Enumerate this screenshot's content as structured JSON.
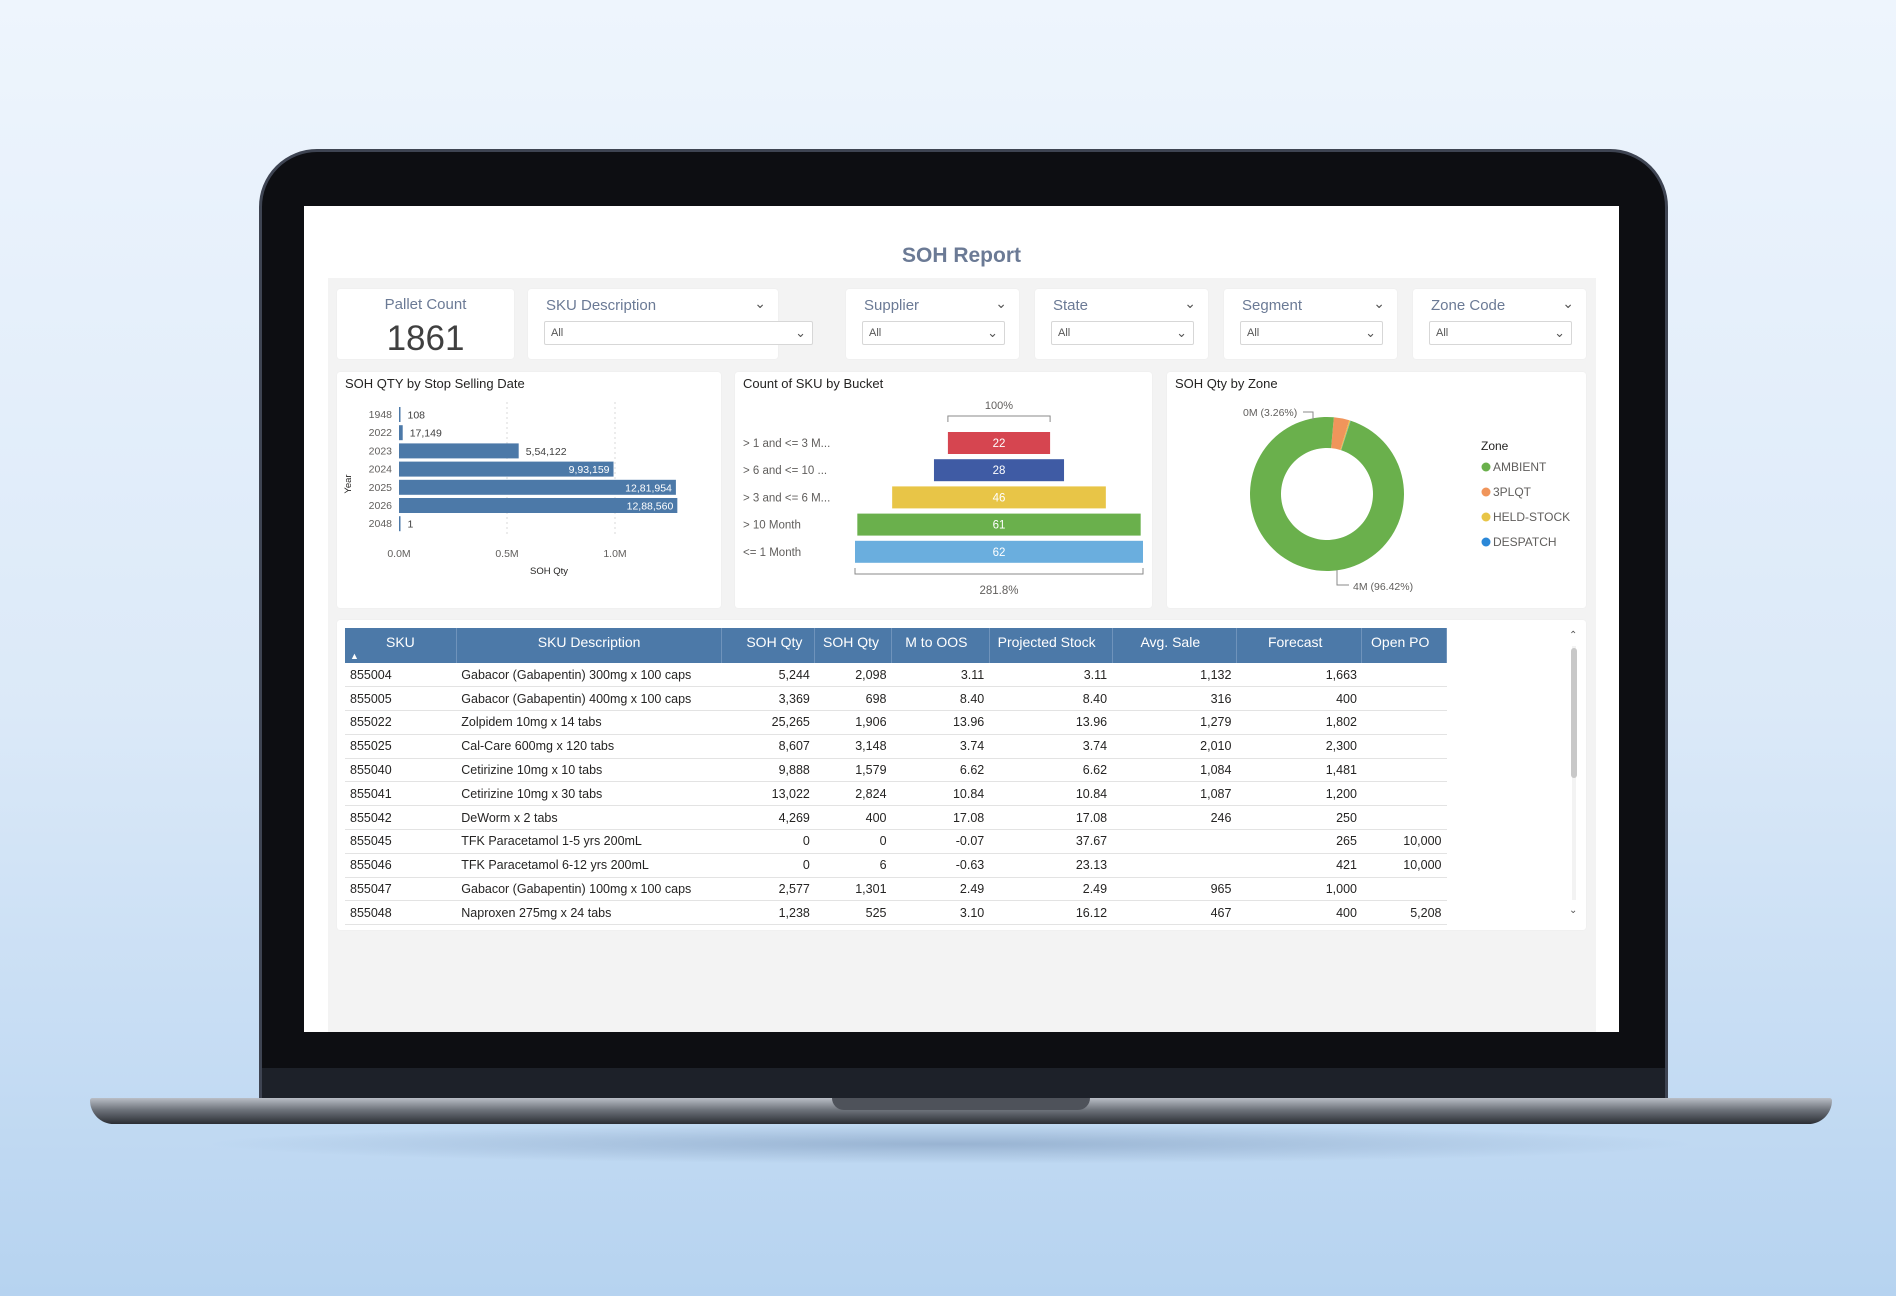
{
  "report": {
    "title": "SOH Report"
  },
  "kpi": {
    "label": "Pallet Count",
    "value": "1861"
  },
  "slicers": [
    {
      "title": "SKU Description",
      "value": "All"
    },
    {
      "title": "Supplier",
      "value": "All"
    },
    {
      "title": "State",
      "value": "All"
    },
    {
      "title": "Segment",
      "value": "All"
    },
    {
      "title": "Zone Code",
      "value": "All"
    }
  ],
  "icons": {
    "chevron": "chevron-down-icon",
    "sort": "sort-ascending-icon",
    "scroll_up": "chevron-up-icon",
    "scroll_down": "chevron-down-icon"
  },
  "colors": {
    "bar": "#4c79a8",
    "header": "#4c79a8",
    "title": "#6b7a95"
  },
  "chart_data": [
    {
      "type": "bar",
      "title": "SOH QTY by Stop Selling Date",
      "orientation": "horizontal",
      "categories": [
        "1948",
        "2022",
        "2023",
        "2024",
        "2025",
        "2026",
        "2048"
      ],
      "values": [
        108,
        17149,
        554122,
        993159,
        1281954,
        1288560,
        1
      ],
      "data_labels": [
        "108",
        "17,149",
        "5,54,122",
        "9,93,159",
        "12,81,954",
        "12,88,560",
        "1"
      ],
      "xlabel": "SOH Qty",
      "ylabel": "Year",
      "xticks": [
        "0.0M",
        "0.5M",
        "1.0M"
      ],
      "xlim": [
        0,
        1400000
      ],
      "grid": true,
      "color": "#4c79a8"
    },
    {
      "type": "funnel",
      "title": "Count of SKU by Bucket",
      "categories": [
        "> 1 and <= 3 M...",
        "> 6 and <= 10 ...",
        "> 3 and <= 6 M...",
        "> 10 Month",
        "<= 1 Month"
      ],
      "values": [
        22,
        28,
        46,
        61,
        62
      ],
      "colors": [
        "#d64550",
        "#3f5ba4",
        "#e8c547",
        "#6ab04c",
        "#6aaede"
      ],
      "top_label": "100%",
      "bottom_label": "281.8%"
    },
    {
      "type": "pie",
      "subtype": "donut",
      "title": "SOH Qty by Zone",
      "legend_title": "Zone",
      "legend_position": "right",
      "slices": [
        {
          "name": "AMBIENT",
          "percent": 96.42,
          "label": "4M (96.42%)",
          "color": "#6ab04c"
        },
        {
          "name": "3PLQT",
          "percent": 3.26,
          "label": "0M (3.26%)",
          "color": "#f0955b"
        },
        {
          "name": "HELD-STOCK",
          "percent": 0.25,
          "label": "",
          "color": "#e8c547"
        },
        {
          "name": "DESPATCH",
          "percent": 0.07,
          "label": "",
          "color": "#2b88d8"
        }
      ]
    }
  ],
  "table": {
    "columns": [
      "SKU",
      "SKU Description",
      "SOH Qty",
      "SOH Qty",
      "M to OOS",
      "Projected Stock",
      "Avg. Sale",
      "Forecast",
      "Open PO"
    ],
    "rows": [
      [
        "855004",
        "Gabacor (Gabapentin) 300mg x 100 caps",
        "5,244",
        "2,098",
        "3.11",
        "3.11",
        "1,132",
        "1,663",
        ""
      ],
      [
        "855005",
        "Gabacor (Gabapentin) 400mg x 100 caps",
        "3,369",
        "698",
        "8.40",
        "8.40",
        "316",
        "400",
        ""
      ],
      [
        "855022",
        "Zolpidem 10mg x 14 tabs",
        "25,265",
        "1,906",
        "13.96",
        "13.96",
        "1,279",
        "1,802",
        ""
      ],
      [
        "855025",
        "Cal-Care 600mg x 120 tabs",
        "8,607",
        "3,148",
        "3.74",
        "3.74",
        "2,010",
        "2,300",
        ""
      ],
      [
        "855040",
        "Cetirizine 10mg x 10 tabs",
        "9,888",
        "1,579",
        "6.62",
        "6.62",
        "1,084",
        "1,481",
        ""
      ],
      [
        "855041",
        "Cetirizine 10mg x 30 tabs",
        "13,022",
        "2,824",
        "10.84",
        "10.84",
        "1,087",
        "1,200",
        ""
      ],
      [
        "855042",
        "DeWorm x 2 tabs",
        "4,269",
        "400",
        "17.08",
        "17.08",
        "246",
        "250",
        ""
      ],
      [
        "855045",
        "TFK Paracetamol 1-5 yrs 200mL",
        "0",
        "0",
        "-0.07",
        "37.67",
        "",
        "265",
        "10,000"
      ],
      [
        "855046",
        "TFK Paracetamol 6-12 yrs 200mL",
        "0",
        "6",
        "-0.63",
        "23.13",
        "",
        "421",
        "10,000"
      ],
      [
        "855047",
        "Gabacor (Gabapentin) 100mg x 100 caps",
        "2,577",
        "1,301",
        "2.49",
        "2.49",
        "965",
        "1,000",
        ""
      ],
      [
        "855048",
        "Naproxen 275mg x 24 tabs",
        "1,238",
        "525",
        "3.10",
        "16.12",
        "467",
        "400",
        "5,208"
      ]
    ]
  }
}
